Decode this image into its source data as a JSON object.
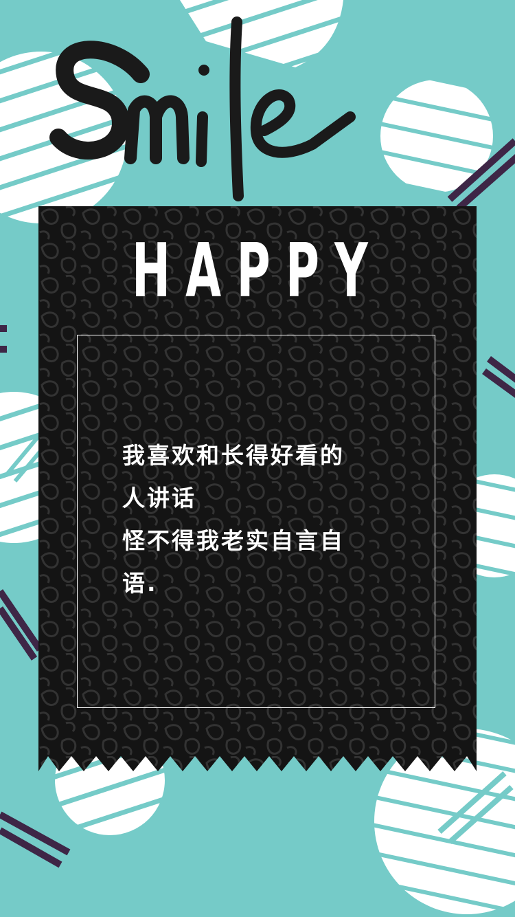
{
  "poster": {
    "logo_word": "Smile",
    "heading": "HAPPY",
    "poem_lines": [
      "我喜欢和长得好看的",
      "人讲话",
      "怪不得我老实自言自",
      "语."
    ],
    "colors": {
      "background": "#75cbc8",
      "stripe_white": "#ffffff",
      "accent_purple": "#3e2646",
      "card_black": "#111111",
      "card_pattern": "#2e2e2e",
      "text": "#ffffff"
    }
  }
}
